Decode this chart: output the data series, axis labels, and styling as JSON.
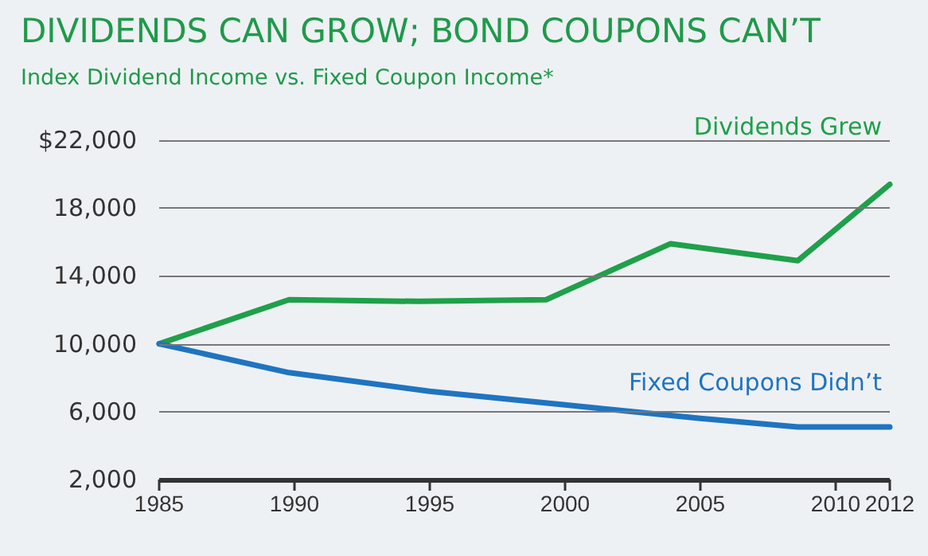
{
  "chart_data": {
    "type": "line",
    "title": "DIVIDENDS CAN GROW; BOND COUPONS CAN’T",
    "subtitle": "Index Dividend Income vs. Fixed Coupon Income*",
    "series": [
      {
        "name": "Dividends Grew",
        "color": "#1fa04a",
        "x": [
          1985,
          1989.8,
          1994.6,
          1999.3,
          2003.9,
          2008.6,
          2012
        ],
        "values": [
          10000,
          12600,
          12500,
          12600,
          15900,
          14900,
          19400
        ]
      },
      {
        "name": "Fixed Coupons Didn’t",
        "color": "#1f74c0",
        "x": [
          1985,
          1989.8,
          1995,
          2000,
          2005,
          2008.6,
          2012
        ],
        "values": [
          10000,
          8300,
          7200,
          6400,
          5600,
          5100,
          5100
        ]
      }
    ],
    "xlim": [
      1985,
      2012
    ],
    "xticks": [
      1985,
      1990,
      1995,
      2000,
      2005,
      2010,
      2012
    ],
    "ylim": [
      2000,
      22000
    ],
    "yticks": [
      {
        "value": 2000,
        "label": "2,000"
      },
      {
        "value": 6000,
        "label": "6,000"
      },
      {
        "value": 10000,
        "label": "10,000"
      },
      {
        "value": 14000,
        "label": "14,000"
      },
      {
        "value": 18000,
        "label": "18,000"
      },
      {
        "value": 22000,
        "label": "$22,000"
      }
    ],
    "grid": "y",
    "legend": false,
    "marker": "none",
    "line_style": "solid"
  }
}
